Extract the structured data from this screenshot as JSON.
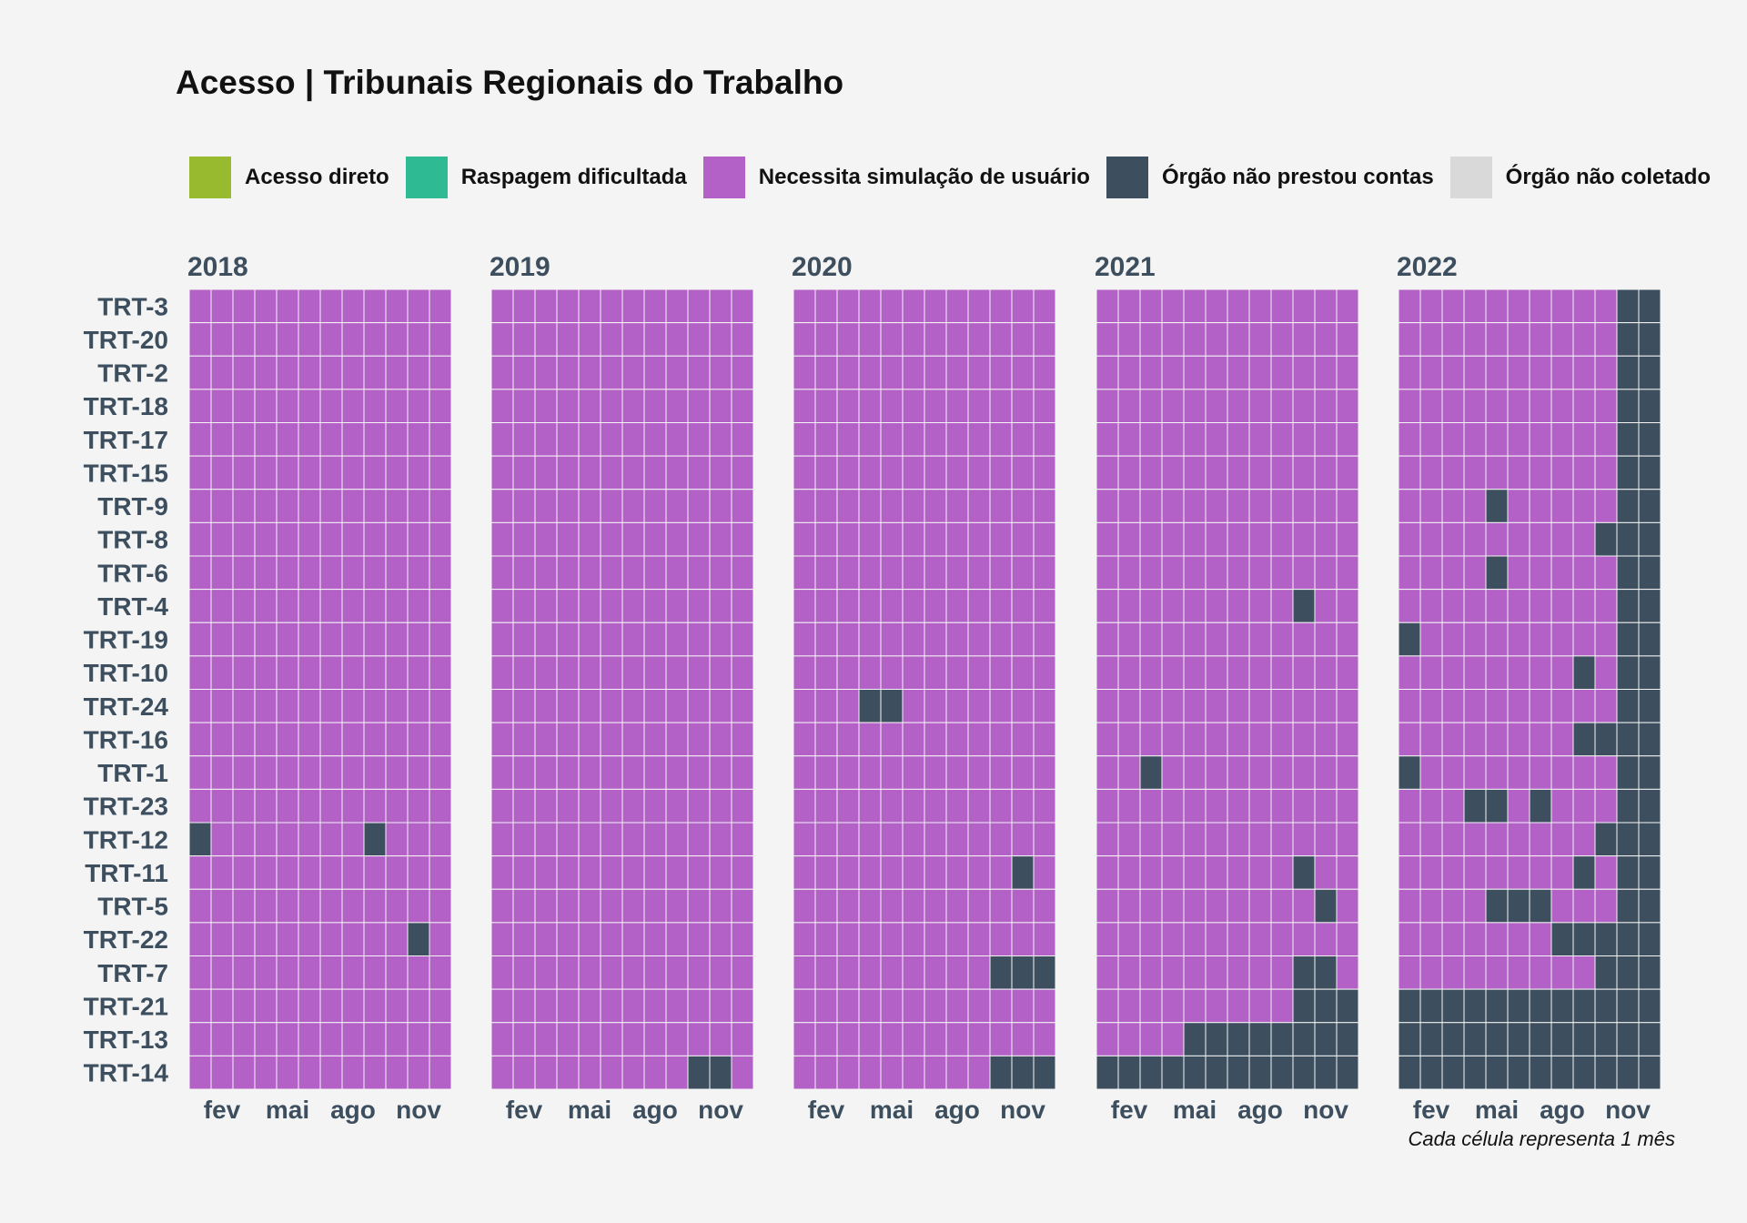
{
  "chart_data": {
    "type": "heatmap",
    "title": "Acesso | Tribunais Regionais do Trabalho",
    "caption": "Cada célula representa 1 mês",
    "legend_position": "top",
    "legend": [
      {
        "key": "D",
        "label": "Acesso direto",
        "color": "#97ba2f"
      },
      {
        "key": "R",
        "label": "Raspagem dificultada",
        "color": "#2ebb94"
      },
      {
        "key": "S",
        "label": "Necessita simulação de usuário",
        "color": "#b361c6"
      },
      {
        "key": "N",
        "label": "Órgão não prestou contas",
        "color": "#3d4f5f"
      },
      {
        "key": "C",
        "label": "Órgão não coletado",
        "color": "#d9d9d9"
      }
    ],
    "rows": [
      "TRT-3",
      "TRT-20",
      "TRT-2",
      "TRT-18",
      "TRT-17",
      "TRT-15",
      "TRT-9",
      "TRT-8",
      "TRT-6",
      "TRT-4",
      "TRT-19",
      "TRT-10",
      "TRT-24",
      "TRT-16",
      "TRT-1",
      "TRT-23",
      "TRT-12",
      "TRT-11",
      "TRT-5",
      "TRT-22",
      "TRT-7",
      "TRT-21",
      "TRT-13",
      "TRT-14"
    ],
    "month_ticks": [
      {
        "month": 2,
        "label": "fev"
      },
      {
        "month": 5,
        "label": "mai"
      },
      {
        "month": 8,
        "label": "ago"
      },
      {
        "month": 11,
        "label": "nov"
      }
    ],
    "panels": [
      {
        "year": "2018",
        "default": "S",
        "exceptions": [
          {
            "row": "TRT-12",
            "months": [
              1,
              9
            ],
            "status": "N"
          },
          {
            "row": "TRT-22",
            "months": [
              11
            ],
            "status": "N"
          }
        ]
      },
      {
        "year": "2019",
        "default": "S",
        "exceptions": [
          {
            "row": "TRT-14",
            "months": [
              10,
              11
            ],
            "status": "N"
          }
        ]
      },
      {
        "year": "2020",
        "default": "S",
        "exceptions": [
          {
            "row": "TRT-24",
            "months": [
              4,
              5
            ],
            "status": "N"
          },
          {
            "row": "TRT-11",
            "months": [
              11
            ],
            "status": "N"
          },
          {
            "row": "TRT-7",
            "months": [
              10,
              11,
              12
            ],
            "status": "N"
          },
          {
            "row": "TRT-14",
            "months": [
              10,
              11,
              12
            ],
            "status": "N"
          }
        ]
      },
      {
        "year": "2021",
        "default": "S",
        "exceptions": [
          {
            "row": "TRT-4",
            "months": [
              10
            ],
            "status": "N"
          },
          {
            "row": "TRT-1",
            "months": [
              3
            ],
            "status": "N"
          },
          {
            "row": "TRT-11",
            "months": [
              10
            ],
            "status": "N"
          },
          {
            "row": "TRT-5",
            "months": [
              11
            ],
            "status": "N"
          },
          {
            "row": "TRT-7",
            "months": [
              10,
              11
            ],
            "status": "N"
          },
          {
            "row": "TRT-21",
            "months": [
              10,
              11,
              12
            ],
            "status": "N"
          },
          {
            "row": "TRT-13",
            "months": [
              5,
              6,
              7,
              8,
              9,
              10,
              11,
              12
            ],
            "status": "N"
          },
          {
            "row": "TRT-14",
            "months": [
              1,
              2,
              3,
              4,
              5,
              6,
              7,
              8,
              9,
              10,
              11,
              12
            ],
            "status": "N"
          }
        ]
      },
      {
        "year": "2022",
        "default": "S",
        "all_rows_months": [
          {
            "months": [
              11,
              12
            ],
            "status": "N"
          }
        ],
        "exceptions": [
          {
            "row": "TRT-9",
            "months": [
              5
            ],
            "status": "N"
          },
          {
            "row": "TRT-8",
            "months": [
              10
            ],
            "status": "N"
          },
          {
            "row": "TRT-6",
            "months": [
              5
            ],
            "status": "N"
          },
          {
            "row": "TRT-19",
            "months": [
              1
            ],
            "status": "N"
          },
          {
            "row": "TRT-10",
            "months": [
              9
            ],
            "status": "N"
          },
          {
            "row": "TRT-16",
            "months": [
              9,
              10
            ],
            "status": "N"
          },
          {
            "row": "TRT-1",
            "months": [
              1
            ],
            "status": "N"
          },
          {
            "row": "TRT-23",
            "months": [
              4,
              5,
              7
            ],
            "status": "N"
          },
          {
            "row": "TRT-12",
            "months": [
              10
            ],
            "status": "N"
          },
          {
            "row": "TRT-11",
            "months": [
              9
            ],
            "status": "N"
          },
          {
            "row": "TRT-5",
            "months": [
              5,
              6,
              7
            ],
            "status": "N"
          },
          {
            "row": "TRT-22",
            "months": [
              8,
              9,
              10
            ],
            "status": "N"
          },
          {
            "row": "TRT-7",
            "months": [
              10
            ],
            "status": "N"
          },
          {
            "row": "TRT-21",
            "months": [
              1,
              2,
              3,
              4,
              5,
              6,
              7,
              8,
              9,
              10
            ],
            "status": "N"
          },
          {
            "row": "TRT-13",
            "months": [
              1,
              2,
              3,
              4,
              5,
              6,
              7,
              8,
              9,
              10
            ],
            "status": "N"
          },
          {
            "row": "TRT-14",
            "months": [
              1,
              2,
              3,
              4,
              5,
              6,
              7,
              8,
              9,
              10
            ],
            "status": "N"
          }
        ]
      }
    ]
  }
}
